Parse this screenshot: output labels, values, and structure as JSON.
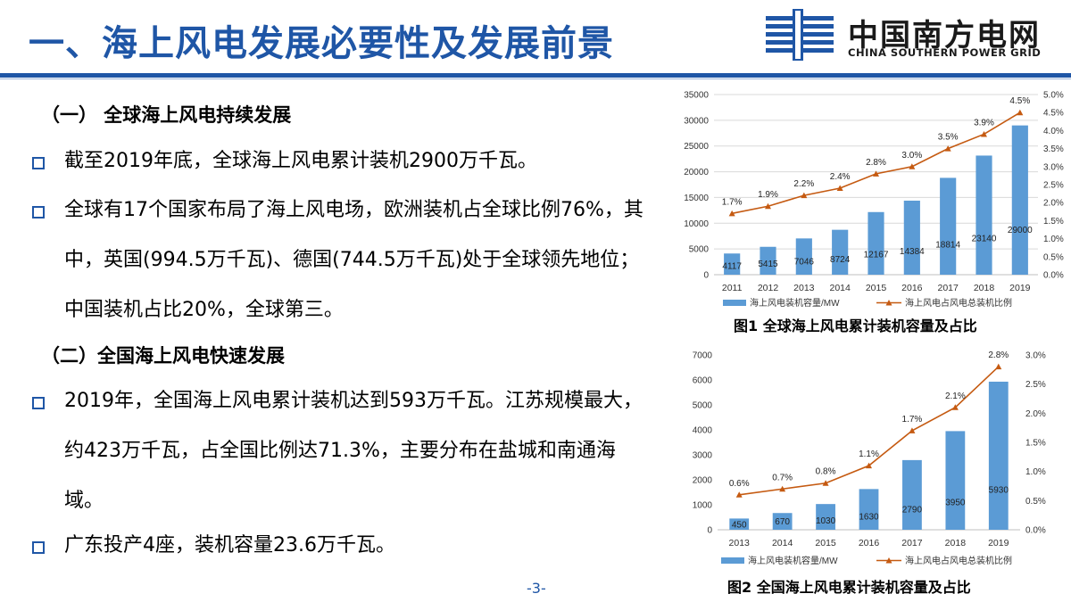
{
  "header": {
    "title": "一、海上风电发展必要性及发展前景",
    "logo_cn": "中国南方电网",
    "logo_en": "CHINA SOUTHERN POWER GRID"
  },
  "content": {
    "section1": "（一） 全球海上风电持续发展",
    "bullet1": "截至2019年底，全球海上风电累计装机2900万千瓦。",
    "bullet2": "全球有17个国家布局了海上风电场，欧洲装机占全球比例76%，其中，英国(994.5万千瓦)、德国(744.5万千瓦)处于全球领先地位；中国装机占比20%，全球第三。",
    "section2": "（二）全国海上风电快速发展",
    "bullet3": "2019年，全国海上风电累计装机达到593万千瓦。江苏规模最大，约423万千瓦，占全国比例达71.3%，主要分布在盐城和南通海域。",
    "bullet4": "广东投产4座，装机容量23.6万千瓦。"
  },
  "footer": {
    "page": "-3-"
  },
  "colors": {
    "accent": "#1f56a6",
    "bar": "#5b9bd5",
    "line": "#c55a11"
  },
  "chart_data": [
    {
      "type": "bar+line",
      "caption": "图1 全球海上风电累计装机容量及占比",
      "categories": [
        "2011",
        "2012",
        "2013",
        "2014",
        "2015",
        "2016",
        "2017",
        "2018",
        "2019"
      ],
      "series": [
        {
          "name": "海上风电装机容量/MW",
          "type": "bar",
          "axis": "left",
          "values": [
            4117,
            5415,
            7046,
            8724,
            12167,
            14384,
            18814,
            23140,
            29000
          ],
          "labels": [
            "4117",
            "5415",
            "7046",
            "8724",
            "12167",
            "14384",
            "18814",
            "23140",
            "29000"
          ]
        },
        {
          "name": "海上风电占风电总装机比例",
          "type": "line",
          "axis": "right",
          "values": [
            1.7,
            1.9,
            2.2,
            2.4,
            2.8,
            3.0,
            3.5,
            3.9,
            4.5
          ],
          "labels": [
            "1.7%",
            "1.9%",
            "2.2%",
            "2.4%",
            "2.8%",
            "3.0%",
            "3.5%",
            "3.9%",
            "4.5%"
          ]
        }
      ],
      "ylim_left": [
        0,
        35000
      ],
      "yticks_left": [
        "0",
        "5000",
        "10000",
        "15000",
        "20000",
        "25000",
        "30000",
        "35000"
      ],
      "ylim_right": [
        0,
        5
      ],
      "yticks_right": [
        "0.0%",
        "0.5%",
        "1.0%",
        "1.5%",
        "2.0%",
        "2.5%",
        "3.0%",
        "3.5%",
        "4.0%",
        "4.5%",
        "5.0%"
      ],
      "grid": true,
      "legend": "bottom"
    },
    {
      "type": "bar+line",
      "caption": "图2  全国海上风电累计装机容量及占比",
      "categories": [
        "2013",
        "2014",
        "2015",
        "2016",
        "2017",
        "2018",
        "2019"
      ],
      "series": [
        {
          "name": "海上风电装机容量/MW",
          "type": "bar",
          "axis": "left",
          "values": [
            450,
            670,
            1030,
            1630,
            2790,
            3950,
            5930
          ],
          "labels": [
            "450",
            "670",
            "1030",
            "1630",
            "2790",
            "3950",
            "5930"
          ]
        },
        {
          "name": "海上风电占风电总装机比例",
          "type": "line",
          "axis": "right",
          "values": [
            0.6,
            0.7,
            0.8,
            1.1,
            1.7,
            2.1,
            2.8
          ],
          "labels": [
            "0.6%",
            "0.7%",
            "0.8%",
            "1.1%",
            "1.7%",
            "2.1%",
            "2.8%"
          ]
        }
      ],
      "ylim_left": [
        0,
        7000
      ],
      "yticks_left": [
        "0",
        "1000",
        "2000",
        "3000",
        "4000",
        "5000",
        "6000",
        "7000"
      ],
      "ylim_right": [
        0,
        3
      ],
      "yticks_right": [
        "0.0%",
        "0.5%",
        "1.0%",
        "1.5%",
        "2.0%",
        "2.5%",
        "3.0%"
      ],
      "grid": false,
      "legend": "bottom"
    }
  ]
}
